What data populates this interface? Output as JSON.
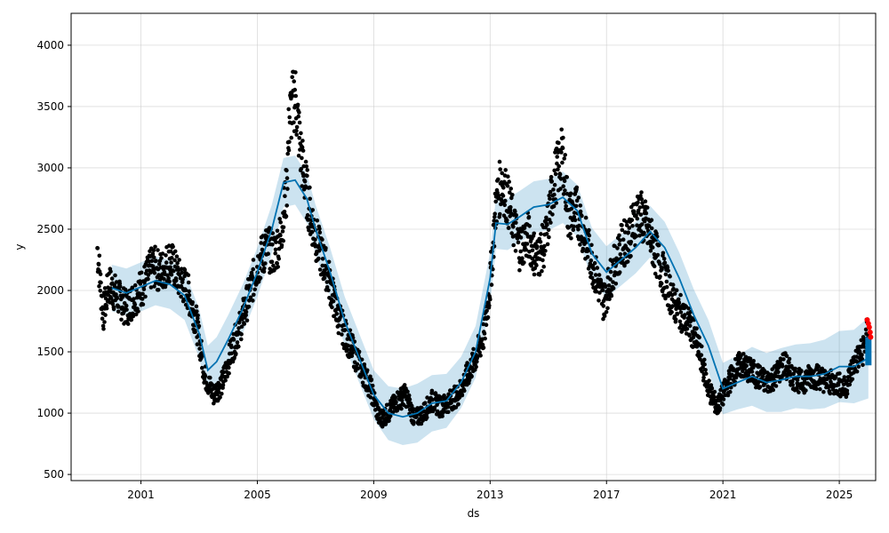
{
  "chart_data": {
    "type": "line",
    "title": "",
    "xlabel": "ds",
    "ylabel": "y",
    "xlim": [
      1998.6,
      2026.25
    ],
    "ylim": [
      450,
      4260
    ],
    "x_ticks": [
      {
        "value": 2001,
        "label": "2001"
      },
      {
        "value": 2005,
        "label": "2005"
      },
      {
        "value": 2009,
        "label": "2009"
      },
      {
        "value": 2013,
        "label": "2013"
      },
      {
        "value": 2017,
        "label": "2017"
      },
      {
        "value": 2021,
        "label": "2021"
      },
      {
        "value": 2025,
        "label": "2025"
      }
    ],
    "y_ticks": [
      {
        "value": 500,
        "label": "500"
      },
      {
        "value": 1000,
        "label": "1000"
      },
      {
        "value": 1500,
        "label": "1500"
      },
      {
        "value": 2000,
        "label": "2000"
      },
      {
        "value": 2500,
        "label": "2500"
      },
      {
        "value": 3000,
        "label": "3000"
      },
      {
        "value": 3500,
        "label": "3500"
      },
      {
        "value": 4000,
        "label": "4000"
      }
    ],
    "grid": true,
    "colors": {
      "observed": "#000000",
      "forecast_line": "#0072B2",
      "uncertainty_band": "#0072B2",
      "test_points": "#ff0000",
      "grid": "#cccccc"
    },
    "series": [
      {
        "role": "forecast",
        "x": [
          2000.0,
          2000.5,
          2001.0,
          2001.5,
          2002.0,
          2002.5,
          2003.0,
          2003.3,
          2003.6,
          2004.0,
          2004.5,
          2005.0,
          2005.5,
          2005.9,
          2006.3,
          2006.7,
          2007.0,
          2007.5,
          2008.0,
          2008.5,
          2009.0,
          2009.5,
          2010.0,
          2010.5,
          2011.0,
          2011.5,
          2012.0,
          2012.5,
          2013.0,
          2013.2,
          2013.6,
          2014.0,
          2014.5,
          2015.0,
          2015.5,
          2016.0,
          2016.5,
          2017.0,
          2017.5,
          2018.0,
          2018.5,
          2019.0,
          2019.5,
          2020.0,
          2020.5,
          2021.0,
          2021.5,
          2022.0,
          2022.5,
          2023.0,
          2023.5,
          2024.0,
          2024.5,
          2025.0,
          2025.5,
          2026.0
        ],
        "yhat": [
          2020,
          1980,
          2030,
          2080,
          2050,
          1960,
          1650,
          1350,
          1420,
          1600,
          1850,
          2150,
          2500,
          2880,
          2900,
          2750,
          2500,
          2150,
          1750,
          1450,
          1150,
          1000,
          970,
          1000,
          1080,
          1100,
          1250,
          1500,
          2100,
          2550,
          2540,
          2600,
          2680,
          2700,
          2760,
          2650,
          2300,
          2150,
          2250,
          2350,
          2480,
          2350,
          2100,
          1800,
          1550,
          1200,
          1250,
          1300,
          1250,
          1270,
          1300,
          1300,
          1320,
          1380,
          1380,
          1450
        ],
        "yhat_lower": [
          1830,
          1800,
          1830,
          1880,
          1850,
          1760,
          1450,
          1150,
          1220,
          1400,
          1650,
          1950,
          2300,
          2680,
          2700,
          2550,
          2300,
          1950,
          1550,
          1250,
          950,
          780,
          740,
          760,
          850,
          880,
          1040,
          1290,
          1890,
          2340,
          2330,
          2390,
          2470,
          2490,
          2550,
          2440,
          2090,
          1940,
          2040,
          2140,
          2270,
          2140,
          1890,
          1590,
          1340,
          990,
          1030,
          1060,
          1010,
          1010,
          1040,
          1030,
          1040,
          1090,
          1080,
          1120
        ],
        "yhat_upper": [
          2210,
          2180,
          2230,
          2280,
          2250,
          2160,
          1850,
          1550,
          1620,
          1800,
          2050,
          2350,
          2700,
          3080,
          3100,
          2950,
          2700,
          2350,
          1950,
          1650,
          1350,
          1220,
          1200,
          1240,
          1310,
          1320,
          1460,
          1710,
          2310,
          2760,
          2750,
          2810,
          2890,
          2910,
          2970,
          2860,
          2510,
          2360,
          2460,
          2560,
          2690,
          2560,
          2310,
          2010,
          1760,
          1410,
          1470,
          1540,
          1490,
          1530,
          1560,
          1570,
          1600,
          1670,
          1680,
          1780
        ]
      },
      {
        "role": "observed",
        "x": [
          1999.5,
          1999.7,
          1999.9,
          2000.2,
          2000.5,
          2000.8,
          2001.1,
          2001.4,
          2001.7,
          2002.0,
          2002.3,
          2002.6,
          2002.9,
          2003.2,
          2003.5,
          2003.8,
          2004.1,
          2004.4,
          2004.7,
          2005.0,
          2005.3,
          2005.6,
          2005.8,
          2006.0,
          2006.1,
          2006.3,
          2006.5,
          2006.8,
          2007.1,
          2007.4,
          2007.7,
          2008.0,
          2008.3,
          2008.6,
          2008.9,
          2009.2,
          2009.5,
          2009.8,
          2010.1,
          2010.4,
          2010.7,
          2011.0,
          2011.3,
          2011.6,
          2011.9,
          2012.2,
          2012.5,
          2012.8,
          2013.0,
          2013.2,
          2013.4,
          2013.7,
          2014.0,
          2014.3,
          2014.6,
          2014.9,
          2015.2,
          2015.5,
          2015.7,
          2016.0,
          2016.3,
          2016.6,
          2016.9,
          2017.2,
          2017.5,
          2017.8,
          2018.1,
          2018.4,
          2018.7,
          2019.0,
          2019.3,
          2019.6,
          2019.9,
          2020.2,
          2020.5,
          2020.8,
          2021.0,
          2021.3,
          2021.6,
          2021.9,
          2022.2,
          2022.5,
          2022.8,
          2023.1,
          2023.4,
          2023.7,
          2024.0,
          2024.3,
          2024.6,
          2024.9,
          2025.2,
          2025.5,
          2025.8,
          2026.0
        ],
        "y": [
          2350,
          1800,
          2050,
          1950,
          1850,
          1950,
          2050,
          2200,
          2150,
          2250,
          2100,
          2000,
          1750,
          1300,
          1150,
          1250,
          1500,
          1700,
          1950,
          2200,
          2350,
          2300,
          2450,
          2800,
          3400,
          3600,
          3100,
          2650,
          2350,
          2150,
          1850,
          1650,
          1500,
          1350,
          1200,
          950,
          1000,
          1100,
          1150,
          950,
          1000,
          1100,
          1050,
          1100,
          1150,
          1300,
          1450,
          1650,
          2050,
          2700,
          2900,
          2650,
          2350,
          2450,
          2250,
          2400,
          2900,
          3100,
          2600,
          2650,
          2400,
          2150,
          1900,
          2150,
          2350,
          2450,
          2650,
          2500,
          2300,
          2100,
          1900,
          1800,
          1700,
          1500,
          1200,
          1050,
          1150,
          1300,
          1400,
          1350,
          1300,
          1250,
          1300,
          1400,
          1300,
          1250,
          1300,
          1300,
          1250,
          1250,
          1200,
          1400,
          1500,
          1700
        ]
      },
      {
        "role": "test",
        "x": [
          2025.96,
          2026.0,
          2026.03,
          2026.06,
          2026.08
        ],
        "y": [
          1760,
          1730,
          1700,
          1660,
          1620
        ]
      }
    ]
  }
}
